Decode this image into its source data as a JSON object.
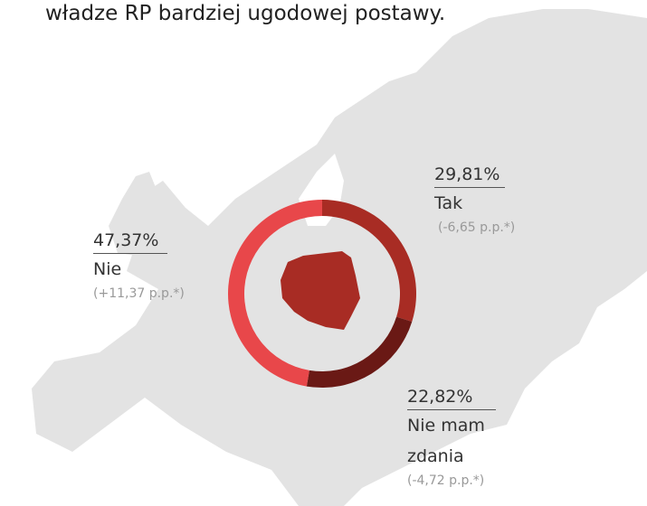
{
  "chart_data": {
    "type": "pie",
    "donut": true,
    "title": "władze RP bardziej ugodowej postawy.",
    "categories": [
      "Tak",
      "Nie mam zdania",
      "Nie"
    ],
    "values": [
      29.81,
      22.82,
      47.37
    ],
    "value_labels": [
      "29,81%",
      "22,82%",
      "47,37%"
    ],
    "annotations": [
      "(-6,65 p.p.*)",
      "(-4,72 p.p.*)",
      "(+11,37 p.p.*)"
    ],
    "colors": [
      "#a82c24",
      "#6a1915",
      "#e8474a"
    ]
  }
}
